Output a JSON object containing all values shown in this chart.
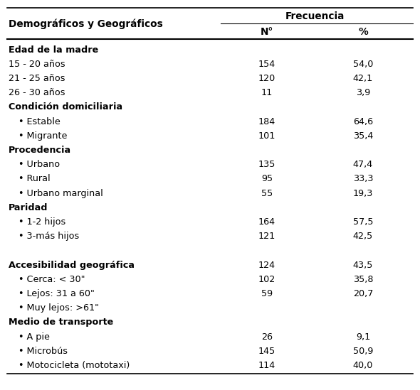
{
  "col_header_main": "Frecuencia",
  "col_header_left": "Demográficos y Geográficos",
  "col_header_n": "N°",
  "col_header_pct": "%",
  "rows": [
    {
      "label": "Edad de la madre",
      "n": "",
      "pct": "",
      "bold": true,
      "indent": 0,
      "bullet": false
    },
    {
      "label": "15 - 20 años",
      "n": "154",
      "pct": "54,0",
      "bold": false,
      "indent": 0,
      "bullet": false
    },
    {
      "label": "21 - 25 años",
      "n": "120",
      "pct": "42,1",
      "bold": false,
      "indent": 0,
      "bullet": false
    },
    {
      "label": "26 - 30 años",
      "n": "11",
      "pct": "3,9",
      "bold": false,
      "indent": 0,
      "bullet": false
    },
    {
      "label": "Condición domiciliaria",
      "n": "",
      "pct": "",
      "bold": true,
      "indent": 0,
      "bullet": false
    },
    {
      "label": "Estable",
      "n": "184",
      "pct": "64,6",
      "bold": false,
      "indent": 1,
      "bullet": true
    },
    {
      "label": "Migrante",
      "n": "101",
      "pct": "35,4",
      "bold": false,
      "indent": 1,
      "bullet": true
    },
    {
      "label": "Procedencia",
      "n": "",
      "pct": "",
      "bold": true,
      "indent": 0,
      "bullet": false
    },
    {
      "label": "Urbano",
      "n": "135",
      "pct": "47,4",
      "bold": false,
      "indent": 1,
      "bullet": true
    },
    {
      "label": "Rural",
      "n": "95",
      "pct": "33,3",
      "bold": false,
      "indent": 1,
      "bullet": true
    },
    {
      "label": "Urbano marginal",
      "n": "55",
      "pct": "19,3",
      "bold": false,
      "indent": 1,
      "bullet": true
    },
    {
      "label": "Paridad",
      "n": "",
      "pct": "",
      "bold": true,
      "indent": 0,
      "bullet": false
    },
    {
      "label": "1-2 hijos",
      "n": "164",
      "pct": "57,5",
      "bold": false,
      "indent": 1,
      "bullet": true
    },
    {
      "label": "3-más hijos",
      "n": "121",
      "pct": "42,5",
      "bold": false,
      "indent": 1,
      "bullet": true
    },
    {
      "label": "",
      "n": "",
      "pct": "",
      "bold": false,
      "indent": 0,
      "bullet": false
    },
    {
      "label": "Accesibilidad geográfica",
      "n": "124",
      "pct": "43,5",
      "bold": true,
      "indent": 0,
      "bullet": false
    },
    {
      "label": "Cerca: < 30\"",
      "n": "102",
      "pct": "35,8",
      "bold": false,
      "indent": 1,
      "bullet": true
    },
    {
      "label": "Lejos: 31 a 60\"",
      "n": "59",
      "pct": "20,7",
      "bold": false,
      "indent": 1,
      "bullet": true
    },
    {
      "label": "Muy lejos: >61\"",
      "n": "",
      "pct": "",
      "bold": false,
      "indent": 1,
      "bullet": true
    },
    {
      "label": "Medio de transporte",
      "n": "",
      "pct": "",
      "bold": true,
      "indent": 0,
      "bullet": false
    },
    {
      "label": "A pie",
      "n": "26",
      "pct": "9,1",
      "bold": false,
      "indent": 1,
      "bullet": true
    },
    {
      "label": "Microbús",
      "n": "145",
      "pct": "50,9",
      "bold": false,
      "indent": 1,
      "bullet": true
    },
    {
      "label": "Motocicleta (mototaxi)",
      "n": "114",
      "pct": "40,0",
      "bold": false,
      "indent": 1,
      "bullet": true
    }
  ],
  "bg_color": "white",
  "text_color": "black",
  "line_color": "black",
  "font_size": 9.2,
  "header_font_size": 9.8,
  "fig_width": 5.9,
  "fig_height": 5.49,
  "dpi": 100
}
